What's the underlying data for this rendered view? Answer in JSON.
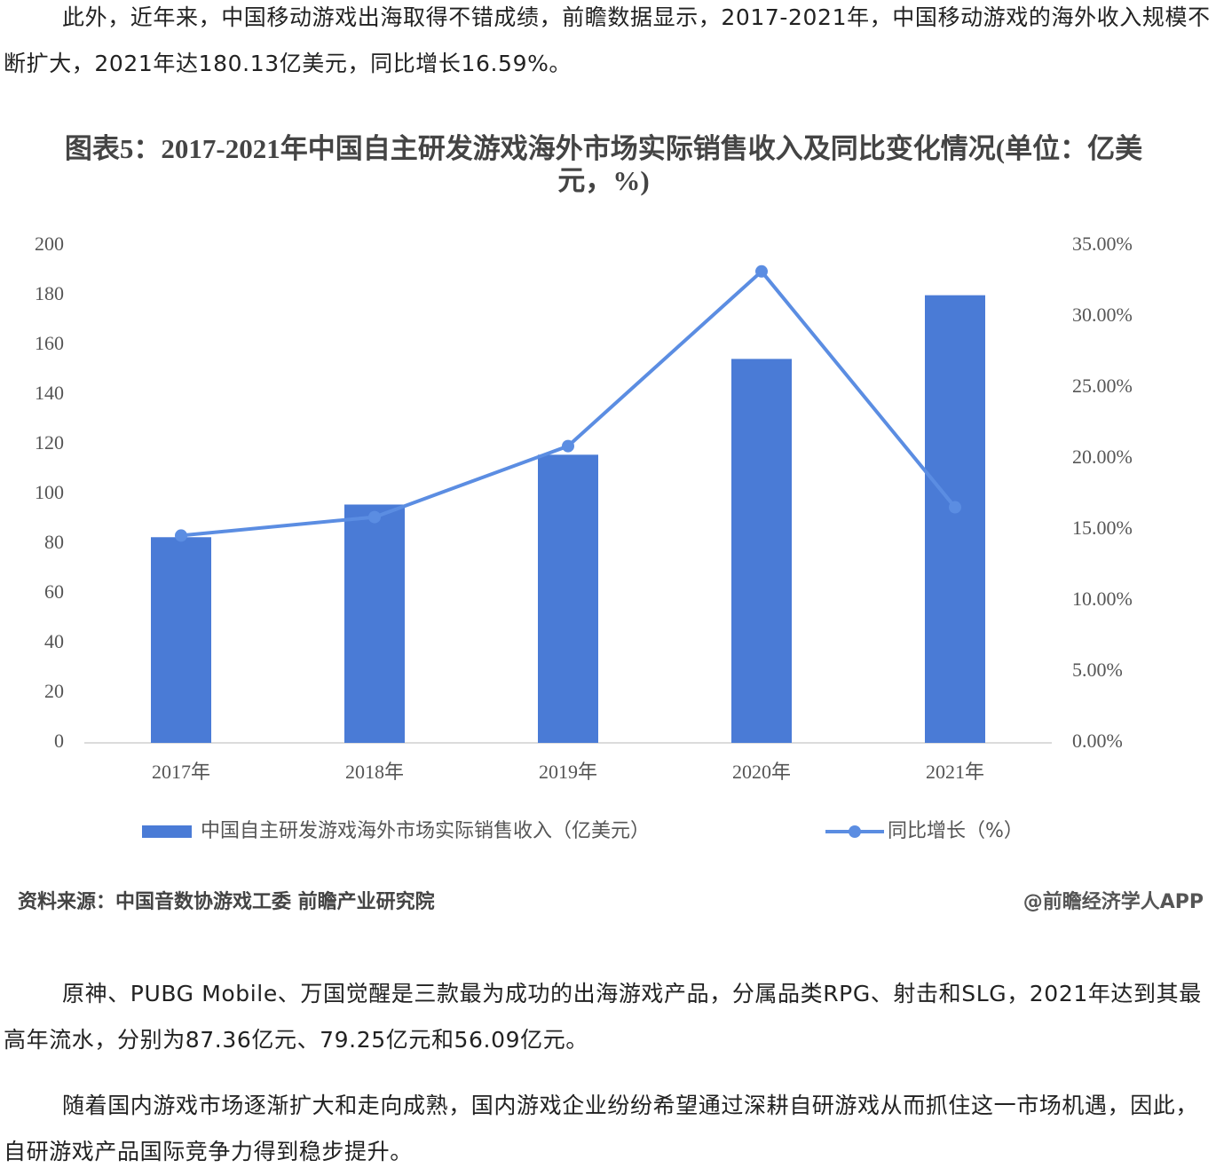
{
  "paragraphs": [
    "此外，近年来，中国移动游戏出海取得不错成绩，前瞻数据显示，2017-2021年，中国移动游戏的海外收入规模不断扩大，2021年达180.13亿美元，同比增长16.59%。",
    "原神、PUBG Mobile、万国觉醒是三款最为成功的出海游戏产品，分属品类RPG、射击和SLG，2021年达到其最高年流水，分别为87.36亿元、79.25亿元和56.09亿元。",
    "随着国内游戏市场逐渐扩大和走向成熟，国内游戏企业纷纷希望通过深耕自研游戏从而抓住这一市场机遇，因此，自研游戏产品国际竞争力得到稳步提升。"
  ],
  "chart_data": {
    "type": "bar-line",
    "title": "图表5：2017-2021年中国自主研发游戏海外市场实际销售收入及同比变化情况(单位：亿美元，%)",
    "categories": [
      "2017年",
      "2018年",
      "2019年",
      "2020年",
      "2021年"
    ],
    "series": [
      {
        "name": "中国自主研发游戏海外市场实际销售收入（亿美元）",
        "type": "bar",
        "color": "#4a7bd6",
        "values": [
          82.76,
          95.9,
          115.95,
          154.5,
          180.13
        ]
      },
      {
        "name": "同比增长（%）",
        "type": "line",
        "axis": "y2",
        "color": "#5b8de2",
        "values": [
          14.6,
          15.9,
          20.9,
          33.2,
          16.59
        ]
      }
    ],
    "ylim": [
      0,
      200
    ],
    "yticks": [
      0,
      20,
      40,
      60,
      80,
      100,
      120,
      140,
      160,
      180,
      200
    ],
    "y2lim": [
      0,
      35
    ],
    "y2ticks": [
      {
        "value": 0,
        "label": "0.00%"
      },
      {
        "value": 5,
        "label": "5.00%"
      },
      {
        "value": 10,
        "label": "10.00%"
      },
      {
        "value": 15,
        "label": "15.00%"
      },
      {
        "value": 20,
        "label": "20.00%"
      },
      {
        "value": 25,
        "label": "25.00%"
      },
      {
        "value": 30,
        "label": "30.00%"
      },
      {
        "value": 35,
        "label": "35.00%"
      }
    ],
    "grid": false,
    "legend": "bottom",
    "source": "资料来源：中国音数协游戏工委 前瞻产业研究院",
    "credit": "@前瞻经济学人APP"
  }
}
